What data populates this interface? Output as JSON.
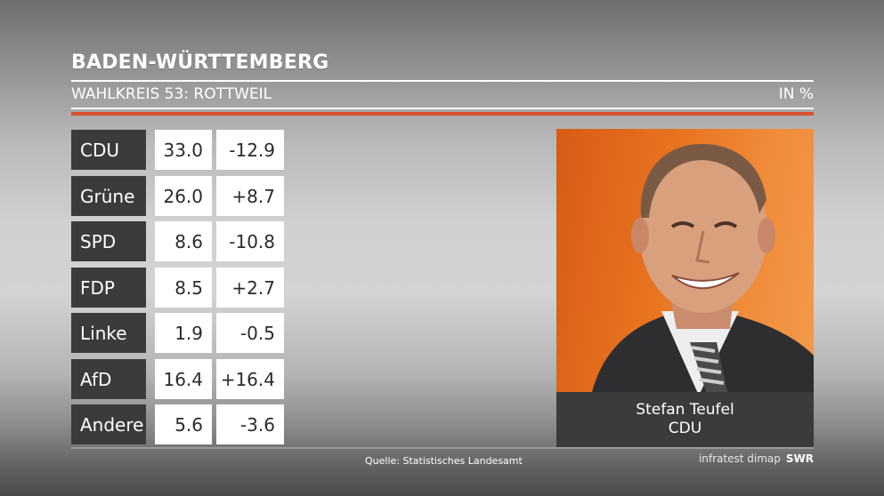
{
  "header": {
    "title": "BADEN-WÜRTTEMBERG",
    "subtitle": "WAHLKREIS 53: ROTTWEIL",
    "unit": "IN %"
  },
  "chart_data": {
    "type": "table",
    "title": "BADEN-WÜRTTEMBERG",
    "subtitle": "WAHLKREIS 53: ROTTWEIL",
    "unit": "IN %",
    "rows": [
      {
        "party": "CDU",
        "share": "33.0",
        "change": "-12.9"
      },
      {
        "party": "Grüne",
        "share": "26.0",
        "change": "+8.7"
      },
      {
        "party": "SPD",
        "share": "8.6",
        "change": "-10.8"
      },
      {
        "party": "FDP",
        "share": "8.5",
        "change": "+2.7"
      },
      {
        "party": "Linke",
        "share": "1.9",
        "change": "-0.5"
      },
      {
        "party": "AfD",
        "share": "16.4",
        "change": "+16.4"
      },
      {
        "party": "Andere",
        "share": "5.6",
        "change": "-3.6"
      }
    ]
  },
  "winner": {
    "name": "Stefan Teufel",
    "party": "CDU"
  },
  "footer": {
    "source": "Quelle: Statistisches Landesamt",
    "brand": "infratest dimap",
    "network": "SWR"
  },
  "colors": {
    "accent": "#d9502f",
    "box_dark": "#3b3b3b",
    "photo_background": "#e8731f"
  }
}
